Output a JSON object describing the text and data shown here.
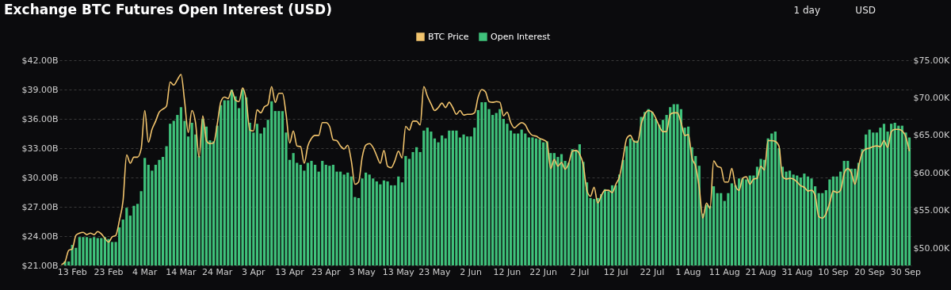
{
  "chart_data": {
    "type": "bar",
    "title": "Exchange BTC Futures Open Interest (USD)",
    "annotations": [
      "1 day",
      "USD"
    ],
    "legend": "top",
    "grid": "y",
    "categories": [
      null,
      null,
      null,
      "13 Feb",
      null,
      null,
      null,
      null,
      null,
      null,
      null,
      null,
      null,
      "23 Feb",
      null,
      null,
      null,
      null,
      null,
      null,
      null,
      null,
      null,
      "4 Mar",
      null,
      null,
      null,
      null,
      null,
      null,
      null,
      null,
      null,
      "14 Mar",
      null,
      null,
      null,
      null,
      null,
      null,
      null,
      null,
      null,
      "24 Mar",
      null,
      null,
      null,
      null,
      null,
      null,
      null,
      null,
      null,
      "3 Apr",
      null,
      null,
      null,
      null,
      null,
      null,
      null,
      null,
      null,
      "13 Apr",
      null,
      null,
      null,
      null,
      null,
      null,
      null,
      null,
      null,
      "23 Apr",
      null,
      null,
      null,
      null,
      null,
      null,
      null,
      null,
      null,
      "3 May",
      null,
      null,
      null,
      null,
      null,
      null,
      null,
      null,
      null,
      "13 May",
      null,
      null,
      null,
      null,
      null,
      null,
      null,
      null,
      null,
      "23 May",
      null,
      null,
      null,
      null,
      null,
      null,
      null,
      null,
      null,
      "2 Jun",
      null,
      null,
      null,
      null,
      null,
      null,
      null,
      null,
      null,
      "12 Jun",
      null,
      null,
      null,
      null,
      null,
      null,
      null,
      null,
      null,
      "22 Jun",
      null,
      null,
      null,
      null,
      null,
      null,
      null,
      null,
      null,
      "2 Jul",
      null,
      null,
      null,
      null,
      null,
      null,
      null,
      null,
      null,
      "12 Jul",
      null,
      null,
      null,
      null,
      null,
      null,
      null,
      null,
      null,
      "22 Jul",
      null,
      null,
      null,
      null,
      null,
      null,
      null,
      null,
      null,
      "1 Aug",
      null,
      null,
      null,
      null,
      null,
      null,
      null,
      null,
      null,
      "11 Aug",
      null,
      null,
      null,
      null,
      null,
      null,
      null,
      null,
      null,
      "21 Aug",
      null,
      null,
      null,
      null,
      null,
      null,
      null,
      null,
      null,
      "31 Aug",
      null,
      null,
      null,
      null,
      null,
      null,
      null,
      null,
      null,
      "10 Sep",
      null,
      null,
      null,
      null,
      null,
      null,
      null,
      null,
      null,
      "20 Sep",
      null,
      null,
      null,
      null,
      null,
      null,
      null,
      null,
      null,
      "30 Sep",
      null
    ],
    "ylim": [
      21,
      42
    ],
    "yticks": [
      {
        "value": 21,
        "label": "$21.00B"
      },
      {
        "value": 24,
        "label": "$24.00B"
      },
      {
        "value": 27,
        "label": "$27.00B"
      },
      {
        "value": 30,
        "label": "$30.00B"
      },
      {
        "value": 33,
        "label": "$33.00B"
      },
      {
        "value": 36,
        "label": "$36.00B"
      },
      {
        "value": 39,
        "label": "$39.00B"
      },
      {
        "value": 42,
        "label": "$42.00B"
      }
    ],
    "y2lim": [
      47.7,
      75
    ],
    "y2ticks": [
      {
        "value": 50,
        "label": "$50.00K"
      },
      {
        "value": 55,
        "label": "$55.00K"
      },
      {
        "value": 60,
        "label": "$60.00K"
      },
      {
        "value": 65,
        "label": "$65.00K"
      },
      {
        "value": 70,
        "label": "$70.00K"
      },
      {
        "value": 75,
        "label": "$75.00K"
      }
    ],
    "series": [
      {
        "name": "BTC Price",
        "type": "line",
        "axis": "y2",
        "color": "#f2c46d",
        "values": [
          47.8,
          48.2,
          49.7,
          49.9,
          51.7,
          52.0,
          52.1,
          51.8,
          52.0,
          51.8,
          52.2,
          51.9,
          51.3,
          50.8,
          51.5,
          51.7,
          53.7,
          56.3,
          62.4,
          61.3,
          62.1,
          62.1,
          63.2,
          68.3,
          64.1,
          65.8,
          66.9,
          68.1,
          68.5,
          68.9,
          72.1,
          71.7,
          72.4,
          73.1,
          69.5,
          65.4,
          68.3,
          66.7,
          62.1,
          67.6,
          64.3,
          63.9,
          64.0,
          66.5,
          69.5,
          70.1,
          69.9,
          71.0,
          69.7,
          69.5,
          71.3,
          69.7,
          65.7,
          65.6,
          68.4,
          68.0,
          68.8,
          69.1,
          71.5,
          69.4,
          70.6,
          70.6,
          67.8,
          64.0,
          65.6,
          63.6,
          63.5,
          61.3,
          63.6,
          64.6,
          65.0,
          65.0,
          66.7,
          66.7,
          66.2,
          64.4,
          64.3,
          63.6,
          63.2,
          63.7,
          61.6,
          58.5,
          58.8,
          62.1,
          63.7,
          63.9,
          63.4,
          62.3,
          61.3,
          63.0,
          60.9,
          60.7,
          61.6,
          62.9,
          62.0,
          66.2,
          65.7,
          66.9,
          66.9,
          66.4,
          71.5,
          70.2,
          69.2,
          68.3,
          68.7,
          69.3,
          68.7,
          69.4,
          68.7,
          67.8,
          68.3,
          67.7,
          67.8,
          67.8,
          68.0,
          70.1,
          71.1,
          70.8,
          69.5,
          69.4,
          69.5,
          69.4,
          67.6,
          68.1,
          66.7,
          66.0,
          66.4,
          66.7,
          66.4,
          65.5,
          65.0,
          64.9,
          64.6,
          64.4,
          64.1,
          60.6,
          61.8,
          60.9,
          61.4,
          60.5,
          61.3,
          62.9,
          63.0,
          62.5,
          61.1,
          57.7,
          56.9,
          58.1,
          56.0,
          57.0,
          57.7,
          57.7,
          57.4,
          58.5,
          59.5,
          62.0,
          64.6,
          65.0,
          64.2,
          64.1,
          66.5,
          67.8,
          68.3,
          68.1,
          67.3,
          66.2,
          65.5,
          65.5,
          67.8,
          68.0,
          68.0,
          66.7,
          65.0,
          65.1,
          62.0,
          60.9,
          58.1,
          54.0,
          56.0,
          55.3,
          61.6,
          60.9,
          60.7,
          58.8,
          58.8,
          60.6,
          58.3,
          57.7,
          59.3,
          59.5,
          58.5,
          59.2,
          59.3,
          60.9,
          60.4,
          64.3,
          64.3,
          64.2,
          63.6,
          59.5,
          59.2,
          59.3,
          59.2,
          58.8,
          58.3,
          58.1,
          57.6,
          57.7,
          57.0,
          54.2,
          54.0,
          54.6,
          56.0,
          57.6,
          57.4,
          57.7,
          59.9,
          60.6,
          60.0,
          58.5,
          60.9,
          62.7,
          63.2,
          63.3,
          63.5,
          63.6,
          63.5,
          64.3,
          63.4,
          65.5,
          65.8,
          65.8,
          65.6,
          64.8,
          62.9
        ]
      },
      {
        "name": "Open Interest",
        "color": "#3fc27b",
        "values": [
          null,
          21.4,
          21.4,
          23.1,
          22.8,
          23.9,
          23.9,
          23.9,
          23.8,
          23.9,
          23.8,
          23.8,
          23.9,
          23.7,
          23.4,
          23.4,
          24.9,
          25.7,
          26.9,
          26.1,
          27.1,
          27.3,
          28.6,
          32.0,
          31.3,
          30.7,
          31.3,
          31.8,
          32.1,
          33.2,
          35.5,
          35.8,
          36.4,
          37.2,
          35.8,
          34.2,
          35.6,
          34.4,
          32.2,
          36.0,
          35.2,
          33.8,
          33.7,
          35.3,
          37.4,
          37.9,
          37.9,
          39.0,
          38.3,
          37.1,
          39.0,
          38.2,
          35.6,
          34.6,
          35.5,
          34.5,
          35.1,
          35.9,
          37.8,
          36.8,
          36.8,
          36.8,
          34.6,
          31.8,
          32.5,
          31.5,
          31.3,
          30.7,
          31.5,
          31.7,
          31.3,
          30.6,
          31.7,
          31.3,
          31.2,
          31.3,
          30.6,
          30.6,
          30.3,
          30.5,
          30.1,
          28.0,
          27.9,
          29.9,
          30.5,
          30.3,
          29.9,
          29.6,
          29.3,
          29.7,
          29.6,
          29.2,
          29.2,
          30.1,
          29.5,
          32.2,
          31.9,
          32.6,
          33.1,
          32.6,
          34.8,
          35.1,
          34.7,
          34.0,
          33.6,
          34.3,
          34.0,
          34.8,
          34.8,
          34.8,
          34.1,
          34.4,
          34.2,
          34.2,
          35.1,
          36.9,
          37.7,
          37.7,
          37.0,
          36.4,
          36.6,
          37.0,
          36.0,
          35.5,
          34.8,
          34.5,
          34.5,
          34.9,
          34.5,
          34.1,
          34.1,
          34.0,
          33.9,
          33.6,
          33.7,
          32.5,
          32.5,
          32.1,
          32.4,
          31.7,
          31.5,
          32.9,
          32.8,
          33.4,
          31.6,
          29.5,
          27.9,
          27.8,
          27.9,
          28.3,
          28.8,
          28.6,
          29.2,
          29.2,
          30.3,
          31.8,
          33.2,
          34.0,
          33.8,
          33.8,
          36.2,
          36.7,
          37.0,
          36.7,
          36.0,
          35.4,
          35.9,
          36.4,
          37.2,
          37.5,
          37.5,
          37.0,
          35.1,
          35.2,
          33.1,
          32.2,
          31.2,
          26.3,
          27.2,
          27.1,
          29.1,
          28.4,
          28.4,
          27.6,
          28.4,
          29.4,
          29.2,
          29.9,
          29.9,
          29.8,
          30.2,
          30.2,
          31.1,
          31.9,
          31.8,
          34.0,
          34.5,
          34.7,
          33.0,
          31.1,
          30.6,
          30.7,
          30.3,
          30.2,
          30.0,
          30.4,
          30.1,
          29.9,
          29.1,
          28.4,
          28.4,
          28.7,
          29.8,
          30.1,
          30.1,
          30.6,
          31.7,
          31.7,
          30.9,
          30.9,
          31.5,
          32.9,
          34.4,
          34.9,
          34.6,
          34.6,
          35.1,
          35.5,
          34.7,
          35.5,
          35.6,
          35.3,
          35.3,
          34.6,
          34.1
        ]
      }
    ]
  }
}
